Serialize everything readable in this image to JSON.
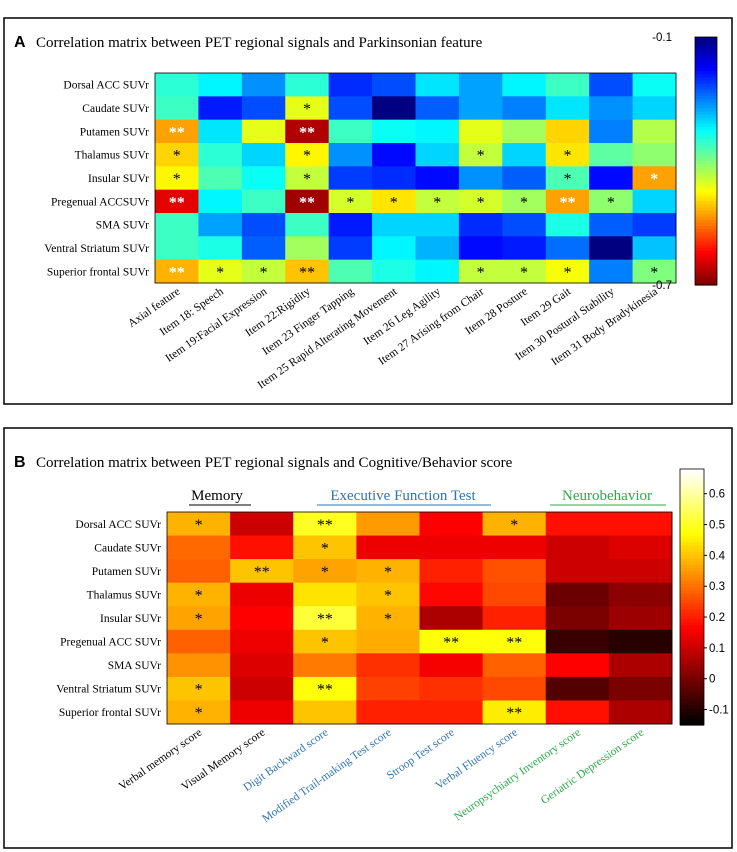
{
  "chart_data": [
    {
      "type": "heatmap",
      "panel_label": "A",
      "title": "Correlation matrix between PET regional signals and Parkinsonian feature",
      "rows": [
        "Dorsal ACC SUVr",
        "Caudate SUVr",
        "Putamen SUVr",
        "Thalamus SUVr",
        "Insular SUVr",
        "Pregenual ACCSUVr",
        "SMA SUVr",
        "Ventral Striatum SUVr",
        "Superior frontal SUVr"
      ],
      "columns": [
        "Axial feature",
        "Item 18: Speech",
        "Item 19:Facial Expression",
        "Item 22:Rigidity",
        "Item 23 Finger Tapping",
        "Item 25 Rapid Alterating Movement",
        "Item 26 Leg Agility",
        "Item 27 Arising from Chair",
        "Item 28 Posture",
        "Item 29 Gait",
        "Item 30 Postural Stability",
        "Item 31 Body Bradykinesia"
      ],
      "values": [
        [
          -0.35,
          -0.32,
          -0.26,
          -0.35,
          -0.2,
          -0.22,
          -0.31,
          -0.27,
          -0.32,
          -0.36,
          -0.22,
          -0.33
        ],
        [
          -0.36,
          -0.19,
          -0.22,
          -0.46,
          -0.22,
          -0.1,
          -0.23,
          -0.27,
          -0.25,
          -0.31,
          -0.26,
          -0.3
        ],
        [
          -0.53,
          -0.31,
          -0.46,
          -0.67,
          -0.36,
          -0.33,
          -0.32,
          -0.46,
          -0.42,
          -0.5,
          -0.25,
          -0.43
        ],
        [
          -0.5,
          -0.35,
          -0.3,
          -0.48,
          -0.26,
          -0.18,
          -0.3,
          -0.44,
          -0.3,
          -0.49,
          -0.38,
          -0.41
        ],
        [
          -0.48,
          -0.37,
          -0.33,
          -0.44,
          -0.21,
          -0.2,
          -0.18,
          -0.26,
          -0.23,
          -0.37,
          -0.18,
          -0.53
        ],
        [
          -0.64,
          -0.32,
          -0.36,
          -0.68,
          -0.45,
          -0.49,
          -0.44,
          -0.45,
          -0.42,
          -0.53,
          -0.41,
          -0.3
        ],
        [
          -0.36,
          -0.27,
          -0.22,
          -0.36,
          -0.19,
          -0.3,
          -0.3,
          -0.2,
          -0.22,
          -0.34,
          -0.23,
          -0.21
        ],
        [
          -0.36,
          -0.34,
          -0.23,
          -0.42,
          -0.21,
          -0.32,
          -0.28,
          -0.18,
          -0.19,
          -0.24,
          -0.1,
          -0.29
        ],
        [
          -0.52,
          -0.46,
          -0.44,
          -0.51,
          -0.37,
          -0.34,
          -0.32,
          -0.44,
          -0.44,
          -0.47,
          -0.25,
          -0.4
        ]
      ],
      "significance": [
        [
          "",
          "",
          "",
          "",
          "",
          "",
          "",
          "",
          "",
          "",
          "",
          ""
        ],
        [
          "",
          "",
          "",
          "*",
          "",
          "",
          "",
          "",
          "",
          "",
          "",
          ""
        ],
        [
          "**",
          "",
          "",
          "**",
          "",
          "",
          "",
          "",
          "",
          "",
          "",
          ""
        ],
        [
          "*",
          "",
          "",
          "*",
          "",
          "",
          "",
          "*",
          "",
          "*",
          "",
          ""
        ],
        [
          "*",
          "",
          "",
          "*",
          "",
          "",
          "",
          "",
          "",
          "*",
          "",
          "*"
        ],
        [
          "**",
          "",
          "",
          "**",
          "*",
          "*",
          "*",
          "*",
          "*",
          "**",
          "*",
          ""
        ],
        [
          "",
          "",
          "",
          "",
          "",
          "",
          "",
          "",
          "",
          "",
          "",
          ""
        ],
        [
          "",
          "",
          "",
          "",
          "",
          "",
          "",
          "",
          "",
          "",
          "",
          ""
        ],
        [
          "**",
          "*",
          "*",
          "**",
          "",
          "",
          "",
          "*",
          "*",
          "*",
          "",
          "*"
        ]
      ],
      "colorbar": {
        "min": -0.7,
        "max": -0.1,
        "ticks": [
          "-0.1",
          "-0.7"
        ],
        "colormap": "jet"
      }
    },
    {
      "type": "heatmap",
      "panel_label": "B",
      "title": "Correlation matrix between PET regional signals and Cognitive/Behavior score",
      "groups": [
        {
          "label": "Memory",
          "color": "#000000"
        },
        {
          "label": "Executive Function Test",
          "color": "#2e74b5"
        },
        {
          "label": "Neurobehavior",
          "color": "#2ca84a"
        }
      ],
      "rows": [
        "Dorsal ACC SUVr",
        "Caudate SUVr",
        "Putamen SUVr",
        "Thalamus SUVr",
        "Insular SUVr",
        "Pregenual ACC SUVr",
        "SMA SUVr",
        "Ventral Striatum SUVr",
        "Superior frontal SUVr"
      ],
      "columns": [
        "Verbal memory score",
        "Visual Memory score",
        "Digit Backward score",
        "Modified Trail-making Test score",
        "Stroop Test score",
        "Verbal Fluency score",
        "Neuropsychiatry Inventory score",
        "Geriatric Depression score"
      ],
      "column_colors": [
        "#000000",
        "#000000",
        "#2e74b5",
        "#2e74b5",
        "#2e74b5",
        "#2e74b5",
        "#2ca84a",
        "#2ca84a"
      ],
      "values": [
        [
          0.38,
          0.1,
          0.5,
          0.35,
          0.16,
          0.38,
          0.18,
          0.18
        ],
        [
          0.29,
          0.18,
          0.4,
          0.14,
          0.14,
          0.14,
          0.1,
          0.12
        ],
        [
          0.28,
          0.4,
          0.36,
          0.38,
          0.2,
          0.26,
          0.1,
          0.1
        ],
        [
          0.38,
          0.14,
          0.44,
          0.4,
          0.17,
          0.25,
          -0.02,
          0.02
        ],
        [
          0.36,
          0.16,
          0.52,
          0.38,
          0.06,
          0.2,
          0.0,
          0.04
        ],
        [
          0.28,
          0.14,
          0.4,
          0.37,
          0.48,
          0.48,
          -0.08,
          -0.1
        ],
        [
          0.34,
          0.12,
          0.31,
          0.22,
          0.15,
          0.28,
          0.16,
          0.06
        ],
        [
          0.4,
          0.1,
          0.48,
          0.24,
          0.22,
          0.25,
          -0.05,
          0.0
        ],
        [
          0.38,
          0.14,
          0.4,
          0.2,
          0.2,
          0.45,
          0.18,
          0.06
        ]
      ],
      "significance": [
        [
          "*",
          "",
          "**",
          "",
          "",
          "*",
          "",
          ""
        ],
        [
          "",
          "",
          "*",
          "",
          "",
          "",
          "",
          ""
        ],
        [
          "",
          "**",
          "*",
          "*",
          "",
          "",
          "",
          ""
        ],
        [
          "*",
          "",
          "",
          "*",
          "",
          "",
          "",
          ""
        ],
        [
          "*",
          "",
          "**",
          "*",
          "",
          "",
          "",
          ""
        ],
        [
          "",
          "",
          "*",
          "",
          "**",
          "**",
          "",
          ""
        ],
        [
          "",
          "",
          "",
          "",
          "",
          "",
          "",
          ""
        ],
        [
          "*",
          "",
          "**",
          "",
          "",
          "",
          "",
          ""
        ],
        [
          "*",
          "",
          "",
          "",
          "",
          "**",
          "",
          ""
        ]
      ],
      "colorbar": {
        "min": -0.15,
        "max": 0.68,
        "ticks": [
          "-0.1",
          "0",
          "0.1",
          "0.2",
          "0.3",
          "0.4",
          "0.5",
          "0.6"
        ],
        "colormap": "hot"
      }
    }
  ]
}
